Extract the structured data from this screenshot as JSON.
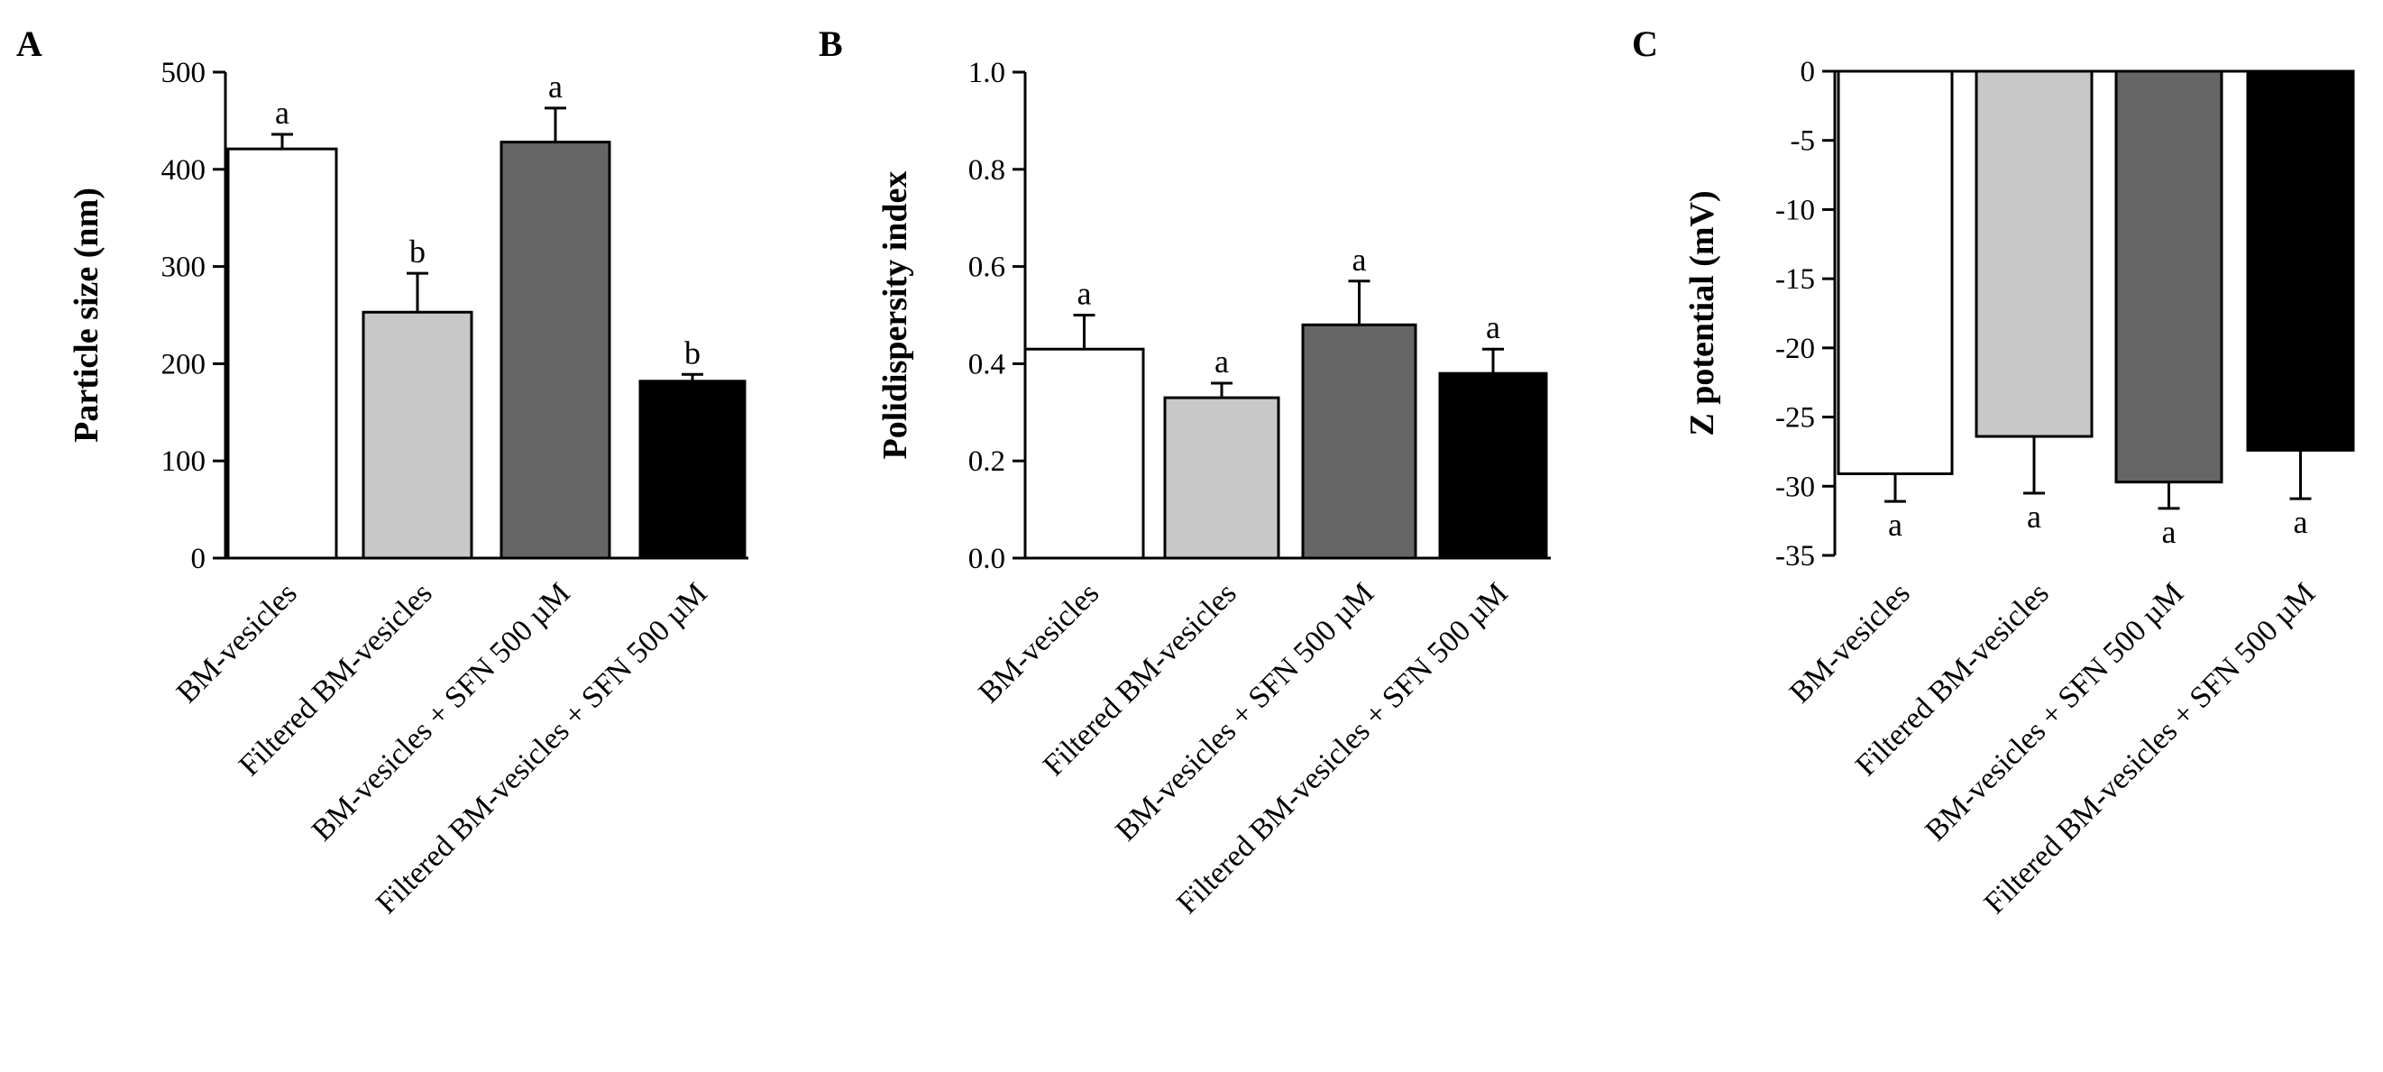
{
  "chart_data": [
    {
      "type": "bar",
      "panel": "A",
      "categories": [
        "BM-vesicles",
        "Filtered BM-vesicles",
        "BM-vesicles + SFN 500 µM",
        "Filtered BM-vesicles + SFN 500 µM"
      ],
      "values": [
        421,
        253,
        428,
        182
      ],
      "errors": [
        15,
        40,
        35,
        7
      ],
      "significance": [
        "a",
        "b",
        "a",
        "b"
      ],
      "colors": [
        "#ffffff",
        "#c8c8c8",
        "#666666",
        "#000000"
      ],
      "title": "",
      "xlabel": "",
      "ylabel": "Particle size (nm)",
      "ylim": [
        0,
        500
      ],
      "yticks": [
        0,
        100,
        200,
        300,
        400,
        500
      ],
      "ytick_labels": [
        "0",
        "100",
        "200",
        "300",
        "400",
        "500"
      ],
      "grid": false
    },
    {
      "type": "bar",
      "panel": "B",
      "categories": [
        "BM-vesicles",
        "Filtered BM-vesicles",
        "BM-vesicles + SFN 500 µM",
        "Filtered BM-vesicles + SFN 500 µM"
      ],
      "values": [
        0.43,
        0.33,
        0.48,
        0.38
      ],
      "errors": [
        0.07,
        0.03,
        0.09,
        0.05
      ],
      "significance": [
        "a",
        "a",
        "a",
        "a"
      ],
      "colors": [
        "#ffffff",
        "#c8c8c8",
        "#666666",
        "#000000"
      ],
      "title": "",
      "xlabel": "",
      "ylabel": "Polidispersity index",
      "ylim": [
        0,
        1.0
      ],
      "yticks": [
        0,
        0.2,
        0.4,
        0.6,
        0.8,
        1.0
      ],
      "ytick_labels": [
        "0.0",
        "0.2",
        "0.4",
        "0.6",
        "0.8",
        "1.0"
      ],
      "grid": false
    },
    {
      "type": "bar",
      "panel": "C",
      "categories": [
        "BM-vesicles",
        "Filtered BM-vesicles",
        "BM-vesicles + SFN 500 µM",
        "Filtered BM-vesicles + SFN 500 µM"
      ],
      "values": [
        -29.1,
        -26.4,
        -29.7,
        -27.4
      ],
      "errors": [
        2.0,
        4.1,
        1.9,
        3.5
      ],
      "significance": [
        "a",
        "a",
        "a",
        "a"
      ],
      "colors": [
        "#ffffff",
        "#c8c8c8",
        "#666666",
        "#000000"
      ],
      "title": "",
      "xlabel": "",
      "ylabel": "Z potential (mV)",
      "ylim": [
        -35,
        0
      ],
      "yticks": [
        0,
        -5,
        -10,
        -15,
        -20,
        -25,
        -30,
        -35
      ],
      "ytick_labels": [
        "0",
        "-5",
        "-10",
        "-15",
        "-20",
        "-25",
        "-30",
        "-35"
      ],
      "grid": false
    }
  ]
}
